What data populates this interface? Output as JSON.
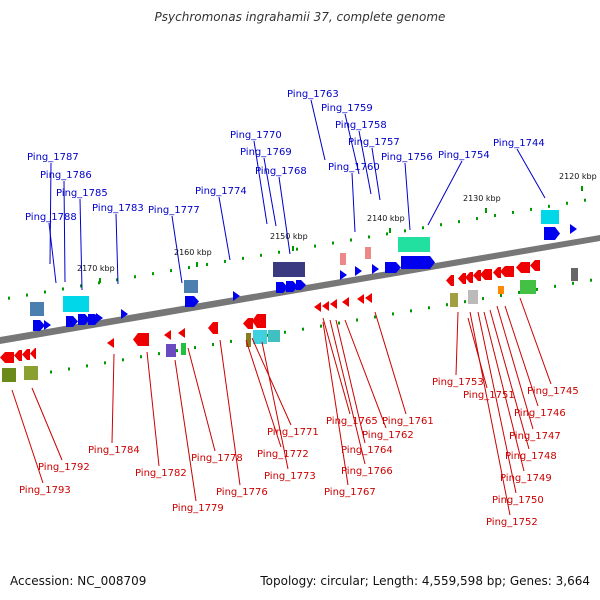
{
  "title": "Psychromonas ingrahamii 37, complete genome",
  "footer": {
    "accession": "Accession: NC_008709",
    "topology": "Topology: circular; Length: 4,559,598 bp; Genes: 3,664"
  },
  "colors": {
    "forward_label": "#0000cc",
    "reverse_label": "#cc0000",
    "forward_gene": "#0000ee",
    "reverse_gene": "#ee0000",
    "backbone": "#777777",
    "tick": "#009900"
  },
  "scale_labels": [
    "2120 kbp",
    "2130 kbp",
    "2140 kbp",
    "2150 kbp",
    "2160 kbp",
    "2170 kbp"
  ],
  "forward_labels": [
    "Ping_1763",
    "Ping_1759",
    "Ping_1758",
    "Ping_1770",
    "Ping_1757",
    "Ping_1769",
    "Ping_1756",
    "Ping_1754",
    "Ping_1744",
    "Ping_1787",
    "Ping_1760",
    "Ping_1768",
    "Ping_1786",
    "Ping_1774",
    "Ping_1785",
    "Ping_1783",
    "Ping_1777",
    "Ping_1788"
  ],
  "reverse_labels": [
    "Ping_1753",
    "Ping_1745",
    "Ping_1751",
    "Ping_1746",
    "Ping_1761",
    "Ping_1765",
    "Ping_1771",
    "Ping_1762",
    "Ping_1747",
    "Ping_1784",
    "Ping_1764",
    "Ping_1778",
    "Ping_1772",
    "Ping_1748",
    "Ping_1792",
    "Ping_1766",
    "Ping_1782",
    "Ping_1773",
    "Ping_1749",
    "Ping_1776",
    "Ping_1767",
    "Ping_1793",
    "Ping_1750",
    "Ping_1779",
    "Ping_1752"
  ]
}
